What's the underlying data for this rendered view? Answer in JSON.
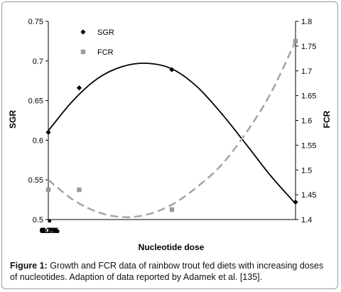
{
  "chart_data": {
    "type": "scatter",
    "xlabel": "Nucleotide dose",
    "ylabel": "SGR",
    "y2label": "FCR",
    "x_ticks": [
      "0.0%",
      "0.1%",
      "0.2%",
      "0.3%",
      "0.4%",
      "0.5%"
    ],
    "xlim": [
      0,
      0.5
    ],
    "ylim": [
      0.5,
      0.75
    ],
    "y_ticks": [
      "0.5",
      "0.55",
      "0.6",
      "0.65",
      "0.7",
      "0.75"
    ],
    "y2lim": [
      1.4,
      1.8
    ],
    "y2_ticks": [
      "1.4",
      "1.45",
      "1.5",
      "1.55",
      "1.6",
      "1.65",
      "1.7",
      "1.75",
      "1.8"
    ],
    "legend": {
      "placement": "top-left"
    },
    "series": [
      {
        "name": "SGR",
        "axis": "left",
        "marker": "diamond",
        "color": "#000000",
        "points": [
          [
            0,
            0.61
          ],
          [
            0.0625,
            0.666
          ],
          [
            0.25,
            0.689
          ],
          [
            0.5,
            0.522
          ]
        ],
        "trend": {
          "type": "polynomial",
          "style": "solid",
          "color": "#000000",
          "points": [
            [
              0,
              0.612
            ],
            [
              0.05,
              0.65
            ],
            [
              0.1,
              0.678
            ],
            [
              0.15,
              0.693
            ],
            [
              0.2,
              0.697
            ],
            [
              0.25,
              0.69
            ],
            [
              0.3,
              0.668
            ],
            [
              0.35,
              0.634
            ],
            [
              0.4,
              0.595
            ],
            [
              0.45,
              0.555
            ],
            [
              0.5,
              0.52
            ]
          ]
        }
      },
      {
        "name": "FCR",
        "axis": "right",
        "marker": "square",
        "color": "#999999",
        "points": [
          [
            0,
            1.46
          ],
          [
            0.0625,
            1.46
          ],
          [
            0.25,
            1.42
          ],
          [
            0.5,
            1.76
          ]
        ],
        "trend": {
          "type": "polynomial",
          "style": "dashed",
          "color": "#a6a6a6",
          "points": [
            [
              0,
              1.48
            ],
            [
              0.05,
              1.44
            ],
            [
              0.1,
              1.415
            ],
            [
              0.15,
              1.405
            ],
            [
              0.2,
              1.41
            ],
            [
              0.25,
              1.43
            ],
            [
              0.3,
              1.465
            ],
            [
              0.35,
              1.51
            ],
            [
              0.4,
              1.575
            ],
            [
              0.45,
              1.655
            ],
            [
              0.5,
              1.76
            ]
          ]
        }
      }
    ]
  },
  "caption": {
    "label": "Figure 1:",
    "text": " Growth and FCR data of rainbow trout fed diets with increasing doses of nucleotides. Adaption of data reported by Adamek et al. [135]."
  }
}
